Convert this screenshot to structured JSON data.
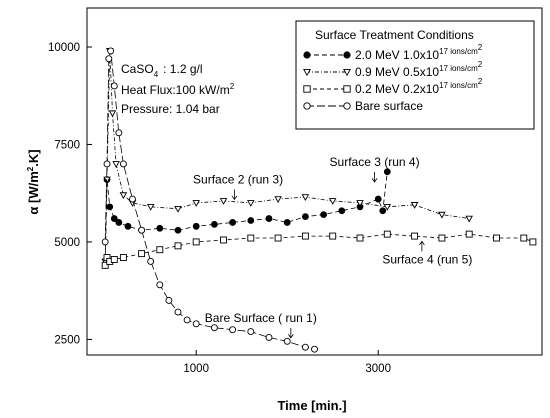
{
  "chart_data": {
    "type": "scatter",
    "xlabel": "Time [min.]",
    "ylabel_main": "α [W/m",
    "ylabel_sup": "2",
    "ylabel_end": ".K]",
    "xlim": [
      -200,
      4800
    ],
    "ylim": [
      2100,
      11000
    ],
    "x_ticks": [
      1000,
      3000
    ],
    "y_ticks": [
      2500,
      5000,
      7500,
      10000
    ],
    "conditions": {
      "caso4_main": "CaSO",
      "caso4_sub": "4",
      "caso4_rest": ": 1.2 g/l",
      "heat_flux_main": "Heat Flux:100 kW/m",
      "heat_flux_sup": "2",
      "pressure": "Pressure: 1.04 bar"
    },
    "legend": {
      "title": "Surface Treatment Conditions",
      "placement": "top-right",
      "entries": [
        {
          "marker": "filled-circle",
          "dash": "5,3",
          "main": "2.0 MeV 1.0x10",
          "sup": "17",
          "tail": " ions/cm",
          "tail_sup": "2"
        },
        {
          "marker": "triangle-down",
          "dash": "4,2,1,2",
          "main": "0.9 MeV 0.5x10",
          "sup": "17",
          "tail": " ions/cm",
          "tail_sup": "2"
        },
        {
          "marker": "open-square",
          "dash": "4,3",
          "main": "0.2 MeV 0.2x10",
          "sup": "17",
          "tail": " ions/cm",
          "tail_sup": "2"
        },
        {
          "marker": "open-circle",
          "dash": "8,3",
          "main": "Bare surface",
          "sup": "",
          "tail": "",
          "tail_sup": ""
        }
      ]
    },
    "annotations": [
      {
        "text": "Surface 2 (run 3)",
        "x": 1460,
        "y": 6500,
        "arrow": "down",
        "arrow_x": 1420
      },
      {
        "text": "Surface 3 (run 4)",
        "x": 2960,
        "y": 6950,
        "arrow": "down",
        "arrow_x": 2960
      },
      {
        "text": "Surface 4 (run 5)",
        "x": 3540,
        "y": 4450,
        "arrow": "up",
        "arrow_x": 3480
      },
      {
        "text": "Bare Surface ( run 1)",
        "x": 1710,
        "y": 2950,
        "arrow": "down",
        "arrow_x": 2040
      }
    ],
    "series": [
      {
        "marker": "filled-circle",
        "x": [
          0,
          20,
          50,
          100,
          150,
          250,
          400,
          600,
          800,
          1000,
          1200,
          1400,
          1600,
          1800,
          2000,
          2200,
          2400,
          2600,
          2800,
          3000,
          3050,
          3100
        ],
        "y": [
          4400,
          6600,
          5900,
          5600,
          5500,
          5400,
          5300,
          5350,
          5300,
          5400,
          5450,
          5500,
          5550,
          5600,
          5500,
          5650,
          5700,
          5800,
          5900,
          6100,
          5800,
          6800
        ]
      },
      {
        "marker": "triangle-down",
        "x": [
          0,
          20,
          50,
          80,
          120,
          200,
          300,
          500,
          800,
          1000,
          1300,
          1600,
          1900,
          2200,
          2500,
          2800,
          3100,
          3400,
          3700,
          4000
        ],
        "y": [
          4500,
          6600,
          9900,
          8300,
          7000,
          6200,
          6000,
          5900,
          5850,
          6000,
          6050,
          6000,
          6100,
          6150,
          6050,
          6000,
          5900,
          5950,
          5700,
          5600
        ]
      },
      {
        "marker": "open-square",
        "x": [
          0,
          20,
          50,
          100,
          200,
          400,
          600,
          800,
          1000,
          1300,
          1600,
          1900,
          2200,
          2500,
          2800,
          3100,
          3400,
          3700,
          4000,
          4300,
          4600,
          4700
        ],
        "y": [
          4400,
          4600,
          4500,
          4550,
          4600,
          4700,
          4800,
          4900,
          5000,
          5050,
          5100,
          5100,
          5150,
          5150,
          5100,
          5200,
          5150,
          5100,
          5200,
          5100,
          5100,
          5000
        ]
      },
      {
        "marker": "open-circle",
        "x": [
          0,
          20,
          40,
          60,
          100,
          150,
          200,
          300,
          400,
          500,
          600,
          700,
          800,
          900,
          1000,
          1200,
          1400,
          1600,
          1800,
          2000,
          2200,
          2300
        ],
        "y": [
          5000,
          7000,
          9700,
          9900,
          9000,
          7800,
          7000,
          6100,
          5300,
          4500,
          3900,
          3500,
          3200,
          3000,
          2900,
          2800,
          2750,
          2700,
          2550,
          2450,
          2300,
          2250
        ]
      }
    ]
  }
}
